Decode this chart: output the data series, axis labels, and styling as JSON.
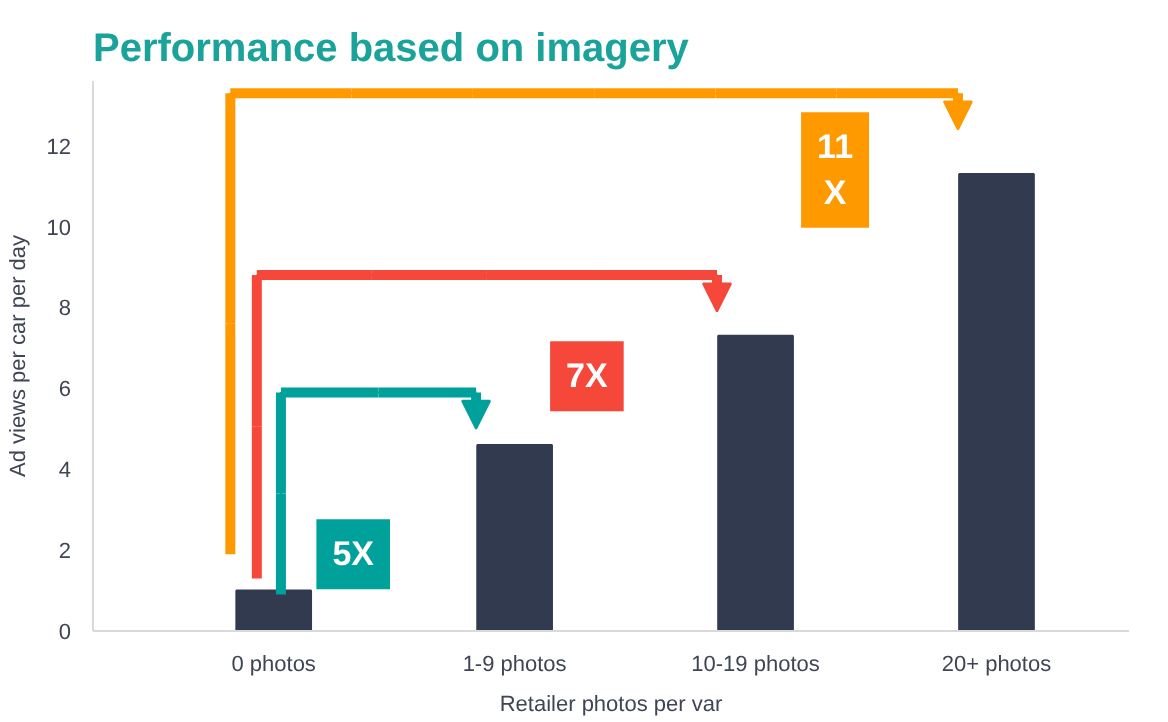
{
  "chart_data": {
    "type": "bar",
    "title": "Performance based on imagery",
    "xlabel": "Retailer photos per var",
    "ylabel": "Ad views per car per day",
    "categories": [
      "0 photos",
      "1-9 photos",
      "10-19 photos",
      "20+ photos"
    ],
    "values": [
      1.0,
      4.6,
      7.3,
      11.3
    ],
    "color": "#323a50",
    "ylim": [
      0,
      13.6
    ],
    "yticks": [
      0,
      2,
      4,
      6,
      8,
      10,
      12
    ],
    "grid": false,
    "annotations": [
      {
        "text": "5X"
      },
      {
        "text": "7X"
      },
      {
        "text": "11 X"
      }
    ]
  }
}
